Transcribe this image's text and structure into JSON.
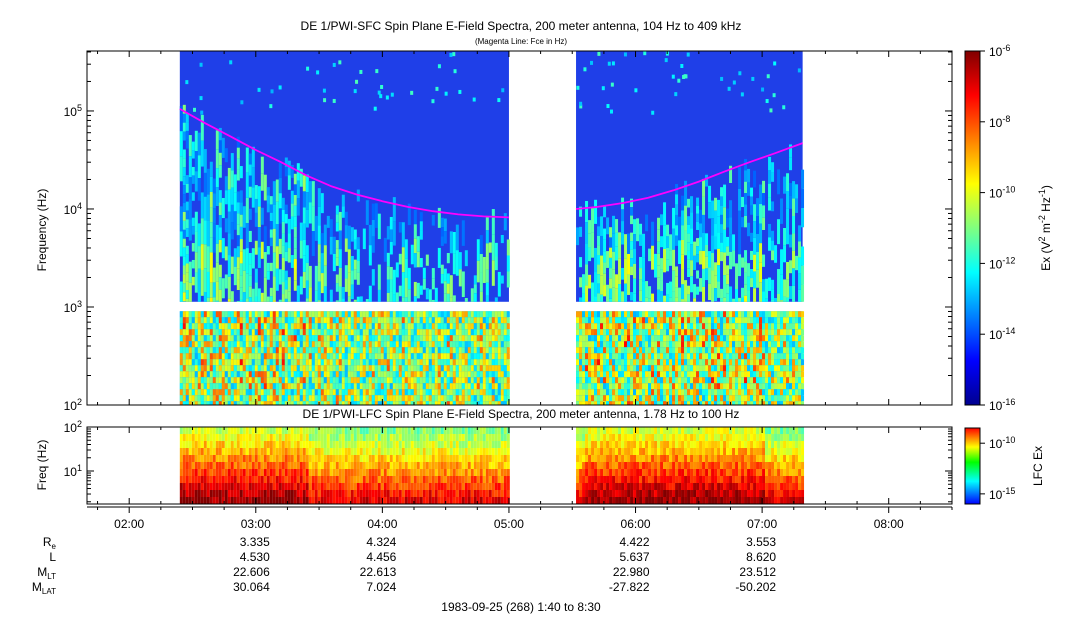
{
  "chart_data": [
    {
      "type": "heatmap",
      "title": "DE 1/PWI-SFC  Spin Plane E-Field Spectra, 200 meter antenna, 104 Hz to 409 kHz",
      "subtitle": "(Magenta Line: Fce in Hz)",
      "ylabel": "Frequency (Hz)",
      "y_scale": "log",
      "ylim": [
        100,
        409000
      ],
      "y_ticks": [
        {
          "value": 100,
          "base": "10",
          "exp": "2"
        },
        {
          "value": 1000,
          "base": "10",
          "exp": "3"
        },
        {
          "value": 10000,
          "base": "10",
          "exp": "4"
        },
        {
          "value": 100000,
          "base": "10",
          "exp": "5"
        }
      ],
      "colorbar": {
        "label_parts": [
          "Ex (V",
          "2",
          " m",
          "-2",
          " Hz",
          "-1",
          ")"
        ],
        "range_log10": [
          -16,
          -6
        ],
        "ticks": [
          {
            "value": -6,
            "base": "10",
            "exp": "-6"
          },
          {
            "value": -8,
            "base": "10",
            "exp": "-8"
          },
          {
            "value": -10,
            "base": "10",
            "exp": "-10"
          },
          {
            "value": -12,
            "base": "10",
            "exp": "-12"
          },
          {
            "value": -14,
            "base": "10",
            "exp": "-14"
          },
          {
            "value": -16,
            "base": "10",
            "exp": "-16"
          }
        ]
      },
      "data_coverage_hours": [
        [
          2.4,
          5.0
        ],
        [
          5.53,
          7.32
        ]
      ],
      "fce_line": {
        "name": "Fce",
        "color": "#ff00ff",
        "x": [
          2.4,
          2.6,
          2.8,
          3.0,
          3.2,
          3.4,
          3.6,
          3.8,
          4.0,
          4.2,
          4.4,
          4.6,
          4.8,
          5.0,
          5.53,
          5.7,
          5.9,
          6.1,
          6.3,
          6.5,
          6.7,
          6.9,
          7.1,
          7.32
        ],
        "y": [
          105000,
          75000,
          55000,
          40000,
          30000,
          22000,
          17000,
          14000,
          12000,
          10500,
          9500,
          8800,
          8400,
          8200,
          10000,
          10500,
          11500,
          13000,
          15500,
          19000,
          24000,
          30000,
          37000,
          47000
        ]
      }
    },
    {
      "type": "heatmap",
      "title": "DE 1/PWI-LFC  Spin Plane E-Field Spectra, 200 meter antenna, 1.78 Hz to 100 Hz",
      "ylabel": "Freq (Hz)",
      "y_scale": "log",
      "ylim": [
        1.78,
        100
      ],
      "y_ticks": [
        {
          "value": 10,
          "base": "10",
          "exp": "1"
        },
        {
          "value": 100,
          "base": "10",
          "exp": "2"
        }
      ],
      "colorbar": {
        "label": "LFC Ex",
        "range_log10": [
          -16,
          -8.5
        ],
        "ticks": [
          {
            "value": -10,
            "base": "10",
            "exp": "-10"
          },
          {
            "value": -15,
            "base": "10",
            "exp": "-15"
          }
        ]
      },
      "data_coverage_hours": [
        [
          2.4,
          5.0
        ],
        [
          5.53,
          7.32
        ]
      ]
    }
  ],
  "x_axis": {
    "range_hours": [
      1.6667,
      8.5
    ],
    "major_ticks": [
      {
        "value": 2,
        "label": "02:00"
      },
      {
        "value": 3,
        "label": "03:00"
      },
      {
        "value": 4,
        "label": "04:00"
      },
      {
        "value": 5,
        "label": "05:00"
      },
      {
        "value": 6,
        "label": "06:00"
      },
      {
        "value": 7,
        "label": "07:00"
      },
      {
        "value": 8,
        "label": "08:00"
      }
    ],
    "date_label": "1983-09-25 (268) 1:40 to 8:30"
  },
  "ephemeris": {
    "rows": [
      {
        "label": "R",
        "sub": "e",
        "values": [
          {
            "hour": 3,
            "text": "3.335"
          },
          {
            "hour": 4,
            "text": "4.324"
          },
          {
            "hour": 6,
            "text": "4.422"
          },
          {
            "hour": 7,
            "text": "3.553"
          }
        ]
      },
      {
        "label": "L",
        "sub": "",
        "values": [
          {
            "hour": 3,
            "text": "4.530"
          },
          {
            "hour": 4,
            "text": "4.456"
          },
          {
            "hour": 6,
            "text": "5.637"
          },
          {
            "hour": 7,
            "text": "8.620"
          }
        ]
      },
      {
        "label": "M",
        "sub": "LT",
        "values": [
          {
            "hour": 3,
            "text": "22.606"
          },
          {
            "hour": 4,
            "text": "22.613"
          },
          {
            "hour": 6,
            "text": "22.980"
          },
          {
            "hour": 7,
            "text": "23.512"
          }
        ]
      },
      {
        "label": "M",
        "sub": "LAT",
        "values": [
          {
            "hour": 3,
            "text": "30.064"
          },
          {
            "hour": 4,
            "text": "7.024"
          },
          {
            "hour": 6,
            "text": "-27.822"
          },
          {
            "hour": 7,
            "text": "-50.202"
          }
        ]
      }
    ]
  }
}
